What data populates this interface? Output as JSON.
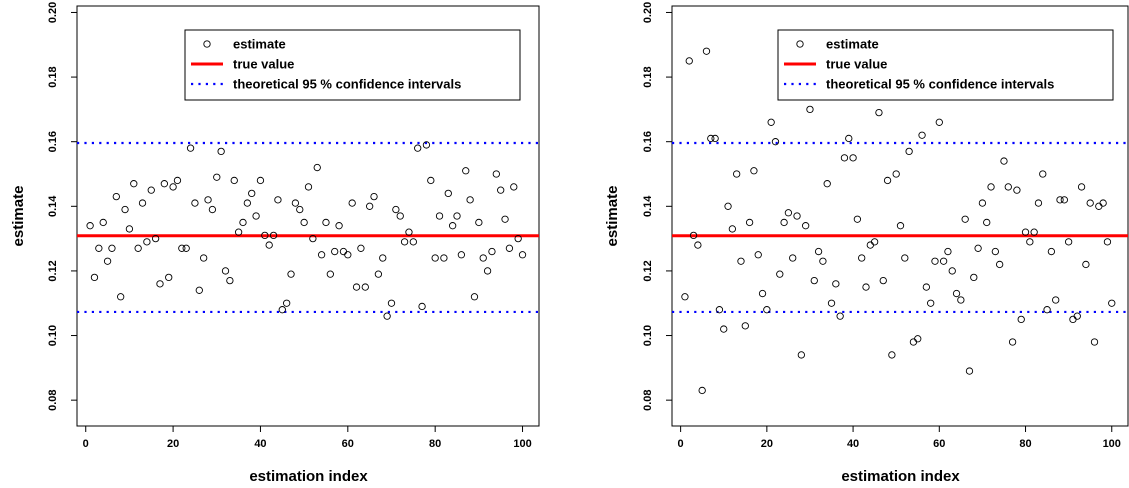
{
  "chart_data": [
    {
      "type": "scatter",
      "xlabel": "estimation index",
      "ylabel": "estimate",
      "xlim": [
        -2,
        104
      ],
      "ylim": [
        0.072,
        0.202
      ],
      "xticks": [
        "0",
        "20",
        "40",
        "60",
        "80",
        "100"
      ],
      "yticks": [
        "0.08",
        "0.10",
        "0.12",
        "0.14",
        "0.16",
        "0.18",
        "0.20"
      ],
      "legend_position": "top-right",
      "legend": [
        "estimate",
        "true value",
        "theoretical 95 % confidence intervals"
      ],
      "true_value": 0.1309,
      "ci": [
        0.1073,
        0.1596
      ],
      "colors": {
        "points": "#000000",
        "true_value": "#ff0000",
        "ci": "#0000ff"
      },
      "x": [
        1,
        2,
        3,
        4,
        5,
        6,
        7,
        8,
        9,
        10,
        11,
        12,
        13,
        14,
        15,
        16,
        17,
        18,
        19,
        20,
        21,
        22,
        23,
        24,
        25,
        26,
        27,
        28,
        29,
        30,
        31,
        32,
        33,
        34,
        35,
        36,
        37,
        38,
        39,
        40,
        41,
        42,
        43,
        44,
        45,
        46,
        47,
        48,
        49,
        50,
        51,
        52,
        53,
        54,
        55,
        56,
        57,
        58,
        59,
        60,
        61,
        62,
        63,
        64,
        65,
        66,
        67,
        68,
        69,
        70,
        71,
        72,
        73,
        74,
        75,
        76,
        77,
        78,
        79,
        80,
        81,
        82,
        83,
        84,
        85,
        86,
        87,
        88,
        89,
        90,
        91,
        92,
        93,
        94,
        95,
        96,
        97,
        98,
        99,
        100
      ],
      "y": [
        0.134,
        0.118,
        0.127,
        0.135,
        0.123,
        0.127,
        0.143,
        0.112,
        0.139,
        0.133,
        0.147,
        0.127,
        0.141,
        0.129,
        0.145,
        0.13,
        0.116,
        0.147,
        0.118,
        0.146,
        0.148,
        0.127,
        0.127,
        0.158,
        0.141,
        0.114,
        0.124,
        0.142,
        0.139,
        0.149,
        0.157,
        0.12,
        0.117,
        0.148,
        0.132,
        0.135,
        0.141,
        0.144,
        0.137,
        0.148,
        0.131,
        0.128,
        0.131,
        0.142,
        0.108,
        0.11,
        0.119,
        0.141,
        0.139,
        0.135,
        0.146,
        0.13,
        0.152,
        0.125,
        0.135,
        0.119,
        0.126,
        0.134,
        0.126,
        0.125,
        0.141,
        0.115,
        0.127,
        0.115,
        0.14,
        0.143,
        0.119,
        0.124,
        0.106,
        0.11,
        0.139,
        0.137,
        0.129,
        0.132,
        0.129,
        0.158,
        0.109,
        0.159,
        0.148,
        0.124,
        0.137,
        0.124,
        0.144,
        0.134,
        0.137,
        0.125,
        0.151,
        0.142,
        0.112,
        0.135,
        0.124,
        0.12,
        0.126,
        0.15,
        0.145,
        0.136,
        0.127,
        0.146,
        0.13,
        0.125
      ]
    },
    {
      "type": "scatter",
      "xlabel": "estimation index",
      "ylabel": "estimate",
      "xlim": [
        -2,
        104
      ],
      "ylim": [
        0.072,
        0.202
      ],
      "xticks": [
        "0",
        "20",
        "40",
        "60",
        "80",
        "100"
      ],
      "yticks": [
        "0.08",
        "0.10",
        "0.12",
        "0.14",
        "0.16",
        "0.18",
        "0.20"
      ],
      "legend_position": "top-right",
      "legend": [
        "estimate",
        "true value",
        "theoretical 95 % confidence intervals"
      ],
      "true_value": 0.1309,
      "ci": [
        0.1073,
        0.1596
      ],
      "colors": {
        "points": "#000000",
        "true_value": "#ff0000",
        "ci": "#0000ff"
      },
      "x": [
        1,
        2,
        3,
        4,
        5,
        6,
        7,
        8,
        9,
        10,
        11,
        12,
        13,
        14,
        15,
        16,
        17,
        18,
        19,
        20,
        21,
        22,
        23,
        24,
        25,
        26,
        27,
        28,
        29,
        30,
        31,
        32,
        33,
        34,
        35,
        36,
        37,
        38,
        39,
        40,
        41,
        42,
        43,
        44,
        45,
        46,
        47,
        48,
        49,
        50,
        51,
        52,
        53,
        54,
        55,
        56,
        57,
        58,
        59,
        60,
        61,
        62,
        63,
        64,
        65,
        66,
        67,
        68,
        69,
        70,
        71,
        72,
        73,
        74,
        75,
        76,
        77,
        78,
        79,
        80,
        81,
        82,
        83,
        84,
        85,
        86,
        87,
        88,
        89,
        90,
        91,
        92,
        93,
        94,
        95,
        96,
        97,
        98,
        99,
        100
      ],
      "y": [
        0.112,
        0.185,
        0.131,
        0.128,
        0.083,
        0.188,
        0.161,
        0.161,
        0.108,
        0.102,
        0.14,
        0.133,
        0.15,
        0.123,
        0.103,
        0.135,
        0.151,
        0.125,
        0.113,
        0.108,
        0.166,
        0.16,
        0.119,
        0.135,
        0.138,
        0.124,
        0.137,
        0.094,
        0.134,
        0.17,
        0.117,
        0.126,
        0.123,
        0.147,
        0.11,
        0.116,
        0.106,
        0.155,
        0.161,
        0.155,
        0.136,
        0.124,
        0.115,
        0.128,
        0.129,
        0.169,
        0.117,
        0.148,
        0.094,
        0.15,
        0.134,
        0.124,
        0.157,
        0.098,
        0.099,
        0.162,
        0.115,
        0.11,
        0.123,
        0.166,
        0.123,
        0.126,
        0.12,
        0.113,
        0.111,
        0.136,
        0.089,
        0.118,
        0.127,
        0.141,
        0.135,
        0.146,
        0.126,
        0.122,
        0.154,
        0.146,
        0.098,
        0.145,
        0.105,
        0.132,
        0.129,
        0.132,
        0.141,
        0.15,
        0.108,
        0.126,
        0.111,
        0.142,
        0.142,
        0.129,
        0.105,
        0.106,
        0.146,
        0.122,
        0.141,
        0.098,
        0.14,
        0.141,
        0.129,
        0.11
      ]
    }
  ]
}
